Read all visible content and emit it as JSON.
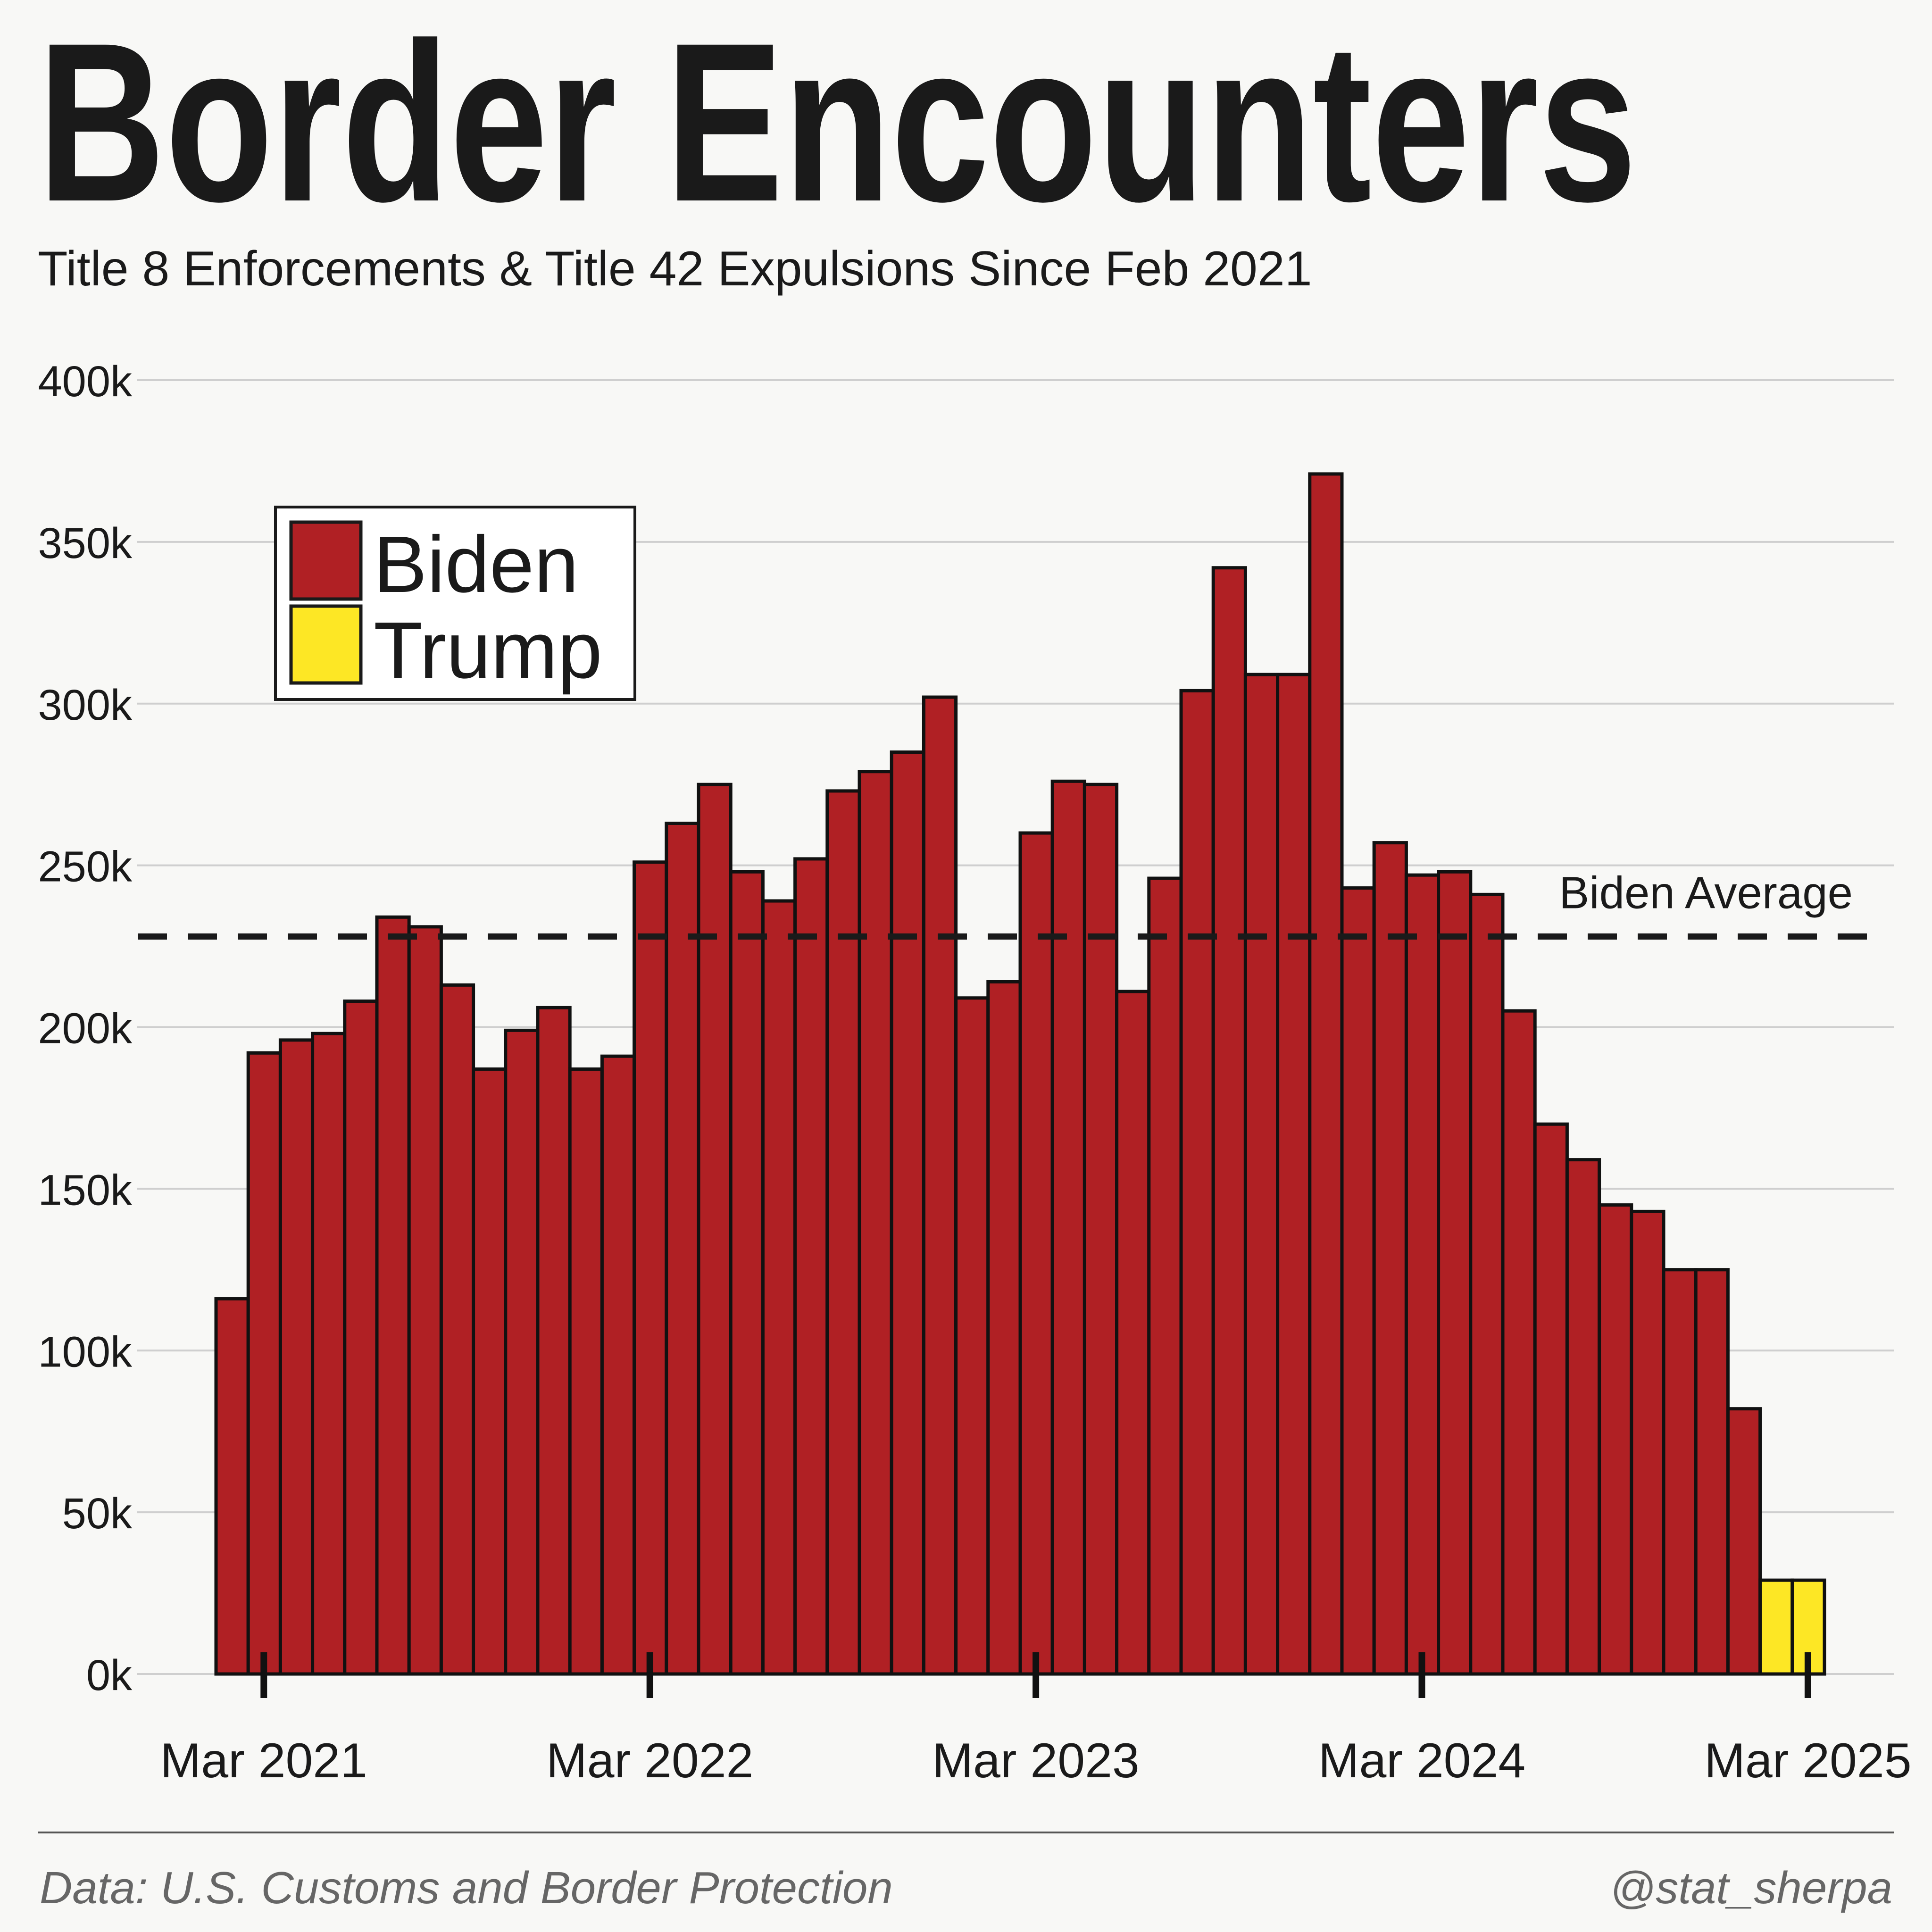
{
  "chart_data": {
    "type": "bar",
    "title": "Border Encounters",
    "subtitle": "Title 8 Enforcements & Title 42 Expulsions Since Feb 2021",
    "xlabel": "",
    "ylabel": "",
    "ylim": [
      0,
      400000
    ],
    "y_ticks": [
      0,
      50000,
      100000,
      150000,
      200000,
      250000,
      300000,
      350000,
      400000
    ],
    "y_tick_labels": [
      "0k",
      "50k",
      "100k",
      "150k",
      "200k",
      "250k",
      "300k",
      "350k",
      "400k"
    ],
    "x_ticks": [
      "Mar 2021",
      "Mar 2022",
      "Mar 2023",
      "Mar 2024",
      "Mar 2025"
    ],
    "x_tick_indices": [
      1,
      13,
      25,
      37,
      49
    ],
    "grid": "horizontal",
    "legend_position": "top-left",
    "categories": [
      "Feb 2021",
      "Mar 2021",
      "Apr 2021",
      "May 2021",
      "Jun 2021",
      "Jul 2021",
      "Aug 2021",
      "Sep 2021",
      "Oct 2021",
      "Nov 2021",
      "Dec 2021",
      "Jan 2022",
      "Feb 2022",
      "Mar 2022",
      "Apr 2022",
      "May 2022",
      "Jun 2022",
      "Jul 2022",
      "Aug 2022",
      "Sep 2022",
      "Oct 2022",
      "Nov 2022",
      "Dec 2022",
      "Jan 2023",
      "Feb 2023",
      "Mar 2023",
      "Apr 2023",
      "May 2023",
      "Jun 2023",
      "Jul 2023",
      "Aug 2023",
      "Sep 2023",
      "Oct 2023",
      "Nov 2023",
      "Dec 2023",
      "Jan 2024",
      "Feb 2024",
      "Mar 2024",
      "Apr 2024",
      "May 2024",
      "Jun 2024",
      "Jul 2024",
      "Aug 2024",
      "Sep 2024",
      "Oct 2024",
      "Nov 2024",
      "Dec 2024",
      "Jan 2025",
      "Feb 2025",
      "Mar 2025"
    ],
    "series": [
      {
        "name": "Biden",
        "color": "#b02024",
        "values": [
          116000,
          192000,
          196000,
          198000,
          208000,
          234000,
          231000,
          213000,
          187000,
          199000,
          206000,
          187000,
          191000,
          251000,
          263000,
          275000,
          248000,
          239000,
          252000,
          273000,
          279000,
          285000,
          302000,
          209000,
          214000,
          260000,
          276000,
          275000,
          211000,
          246000,
          304000,
          342000,
          309000,
          309000,
          371000,
          243000,
          257000,
          247000,
          248000,
          241000,
          205000,
          170000,
          159000,
          145000,
          143000,
          125000,
          125000,
          82000,
          null,
          null
        ]
      },
      {
        "name": "Trump",
        "color": "#fde725",
        "values": [
          null,
          null,
          null,
          null,
          null,
          null,
          null,
          null,
          null,
          null,
          null,
          null,
          null,
          null,
          null,
          null,
          null,
          null,
          null,
          null,
          null,
          null,
          null,
          null,
          null,
          null,
          null,
          null,
          null,
          null,
          null,
          null,
          null,
          null,
          null,
          null,
          null,
          null,
          null,
          null,
          null,
          null,
          null,
          null,
          null,
          null,
          null,
          null,
          29000,
          29000
        ]
      }
    ],
    "reference_line": {
      "label": "Biden Average",
      "value": 228000,
      "style": "dashed"
    }
  },
  "footer": {
    "source": "Data: U.S. Customs and Border Protection",
    "credit": "@stat_sherpa"
  },
  "colors": {
    "background": "#f8f8f6",
    "text": "#1a1a1a",
    "grid": "#cfcfcf",
    "footer_text": "#666666"
  }
}
